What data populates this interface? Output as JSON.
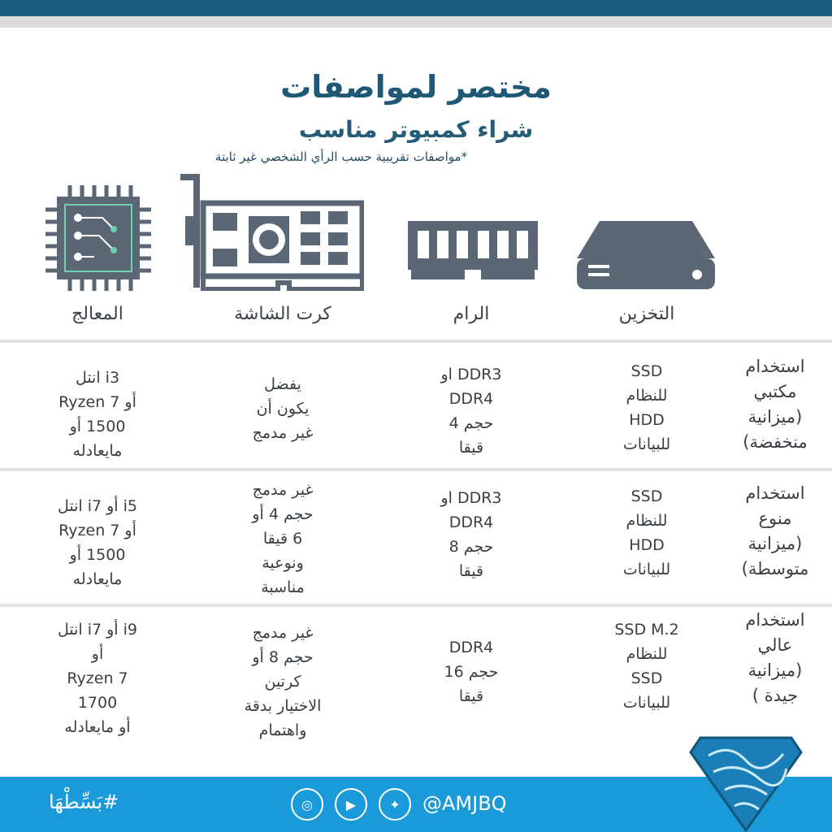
{
  "header": {
    "title": "مختصر لمواصفات",
    "subtitle": "شراء كمبيوتر مناسب",
    "note": "*مواصفات تقريبية  حسب الرأي الشخصي غير ثابتة"
  },
  "columns": [
    {
      "label": "التخزين",
      "icon": "hard-drive-icon"
    },
    {
      "label": "الرام",
      "icon": "ram-icon"
    },
    {
      "label": "كرت الشاشة",
      "icon": "graphics-card-icon"
    },
    {
      "label": "المعالج",
      "icon": "cpu-chip-icon"
    }
  ],
  "rows": [
    {
      "label": "استخدام\nمكتبي\n(ميزانية\nمنخفضة)",
      "storage": "SSD\nللنظام\nHDD\nللبيانات",
      "ram": "DDR3 او\nDDR4\nحجم 4\nقيقا",
      "gpu": "يفضل\nيكون أن\nغير مدمج",
      "cpu": "i3 انتل\nأو Ryzen 7\n1500 أو\nمايعادله"
    },
    {
      "label": "استخدام\nمنوع\n(ميزانية\nمتوسطة)",
      "storage": "SSD\nللنظام\nHDD\nللبيانات",
      "ram": "DDR3 او\nDDR4\nحجم 8\nقيقا",
      "gpu": "غير مدمج\nحجم 4 أو\n6 قيقا\nونوعية\nمناسبة",
      "cpu": "i5 أو i7 انتل\nأو Ryzen 7\n1500 أو\nمايعادله"
    },
    {
      "label": "استخدام\nعالي\n(ميزانية\nجيدة )",
      "storage": "SSD M.2\nللنظام\nSSD\nللبيانات",
      "ram": "DDR4\nحجم 16\nقيقا",
      "gpu": "غير مدمج\nحجم 8 أو\nكرتين\nالاختيار بدقة\nواهتمام",
      "cpu": "i9 أو i7 انتل\nأو\nRyzen 7\n1700\nأو مايعادله"
    }
  ],
  "footer": {
    "hashtag": "#بَسِّطْهَا",
    "handle": "@AMJBQ",
    "social": [
      "instagram-icon",
      "youtube-icon",
      "twitter-icon"
    ]
  },
  "colors": {
    "topbar": "#1b5e82",
    "title": "#1f5877",
    "icons": "#5b6775",
    "chip_accent": "#6fd0b0",
    "footer": "#1a9ad8"
  }
}
